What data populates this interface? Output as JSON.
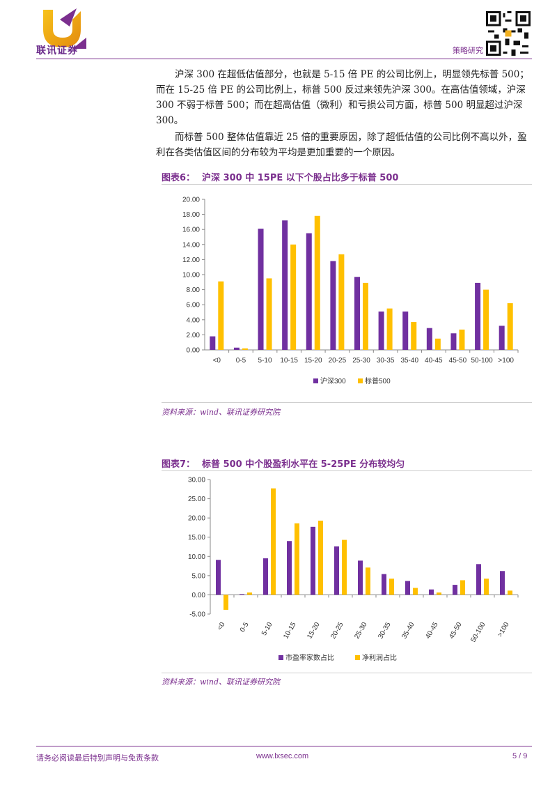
{
  "header": {
    "logo_text": "联讯证券",
    "section": "策略研究"
  },
  "paragraphs": [
    "沪深 300 在超低估值部分，也就是 5-15 倍 PE 的公司比例上，明显领先标普 500；而在 15-25 倍 PE 的公司比例上，标普 500 反过来领先沪深 300。在高估值领域，沪深 300 不弱于标普 500；而在超高估值（微利）和亏损公司方面，标普 500 明显超过沪深 300。",
    "而标普 500 整体估值靠近 25 倍的重要原因，除了超低估值的公司比例不高以外，盈利在各类估值区间的分布较为平均是更加重要的一个原因。"
  ],
  "figures": [
    {
      "label": "图表6：",
      "title": "沪深 300 中 15PE 以下个股占比多于标普 500",
      "source": "资料来源：wind、联讯证券研究院"
    },
    {
      "label": "图表7：",
      "title": "标普 500 中个股盈利水平在 5-25PE 分布较均匀",
      "source": "资料来源：wind、联讯证券研究院"
    }
  ],
  "chart_data": [
    {
      "type": "bar",
      "categories": [
        "<0",
        "0-5",
        "5-10",
        "10-15",
        "15-20",
        "20-25",
        "25-30",
        "30-35",
        "35-40",
        "40-45",
        "45-50",
        "50-100",
        ">100"
      ],
      "series": [
        {
          "name": "沪深300",
          "color": "#7030a0",
          "values": [
            1.8,
            0.3,
            16.1,
            17.2,
            15.5,
            11.8,
            9.7,
            5.1,
            5.1,
            2.9,
            2.2,
            8.9,
            3.2
          ]
        },
        {
          "name": "标普500",
          "color": "#ffc000",
          "values": [
            9.1,
            0.2,
            9.5,
            14.0,
            17.8,
            12.7,
            8.9,
            5.5,
            3.7,
            1.5,
            2.7,
            8.0,
            6.2
          ]
        }
      ],
      "y_ticks": [
        "0.00",
        "2.00",
        "4.00",
        "6.00",
        "8.00",
        "10.00",
        "12.00",
        "14.00",
        "16.00",
        "18.00",
        "20.00"
      ],
      "ylim": [
        0,
        20
      ],
      "legend": "bottom"
    },
    {
      "type": "bar",
      "categories": [
        "<0",
        "0-5",
        "5-10",
        "10-15",
        "15-20",
        "20-25",
        "25-30",
        "30-35",
        "35-40",
        "40-45",
        "45-50",
        "50-100",
        ">100"
      ],
      "series": [
        {
          "name": "市盈率家数占比",
          "color": "#7030a0",
          "values": [
            9.1,
            0.2,
            9.5,
            14.0,
            17.7,
            12.6,
            8.9,
            5.4,
            3.6,
            1.4,
            2.6,
            8.0,
            6.2
          ]
        },
        {
          "name": "净利润占比",
          "color": "#ffc000",
          "values": [
            -3.9,
            0.6,
            27.7,
            18.6,
            19.3,
            14.3,
            7.1,
            4.2,
            1.8,
            0.6,
            3.8,
            4.2,
            1.1
          ]
        }
      ],
      "y_ticks": [
        "-5.00",
        "0.00",
        "5.00",
        "10.00",
        "15.00",
        "20.00",
        "25.00",
        "30.00"
      ],
      "ylim": [
        -5,
        30
      ],
      "legend": "bottom"
    }
  ],
  "footer": {
    "disclaimer": "请务必阅读最后特别声明与免责条款",
    "website": "www.lxsec.com",
    "page": "5 / 9"
  }
}
